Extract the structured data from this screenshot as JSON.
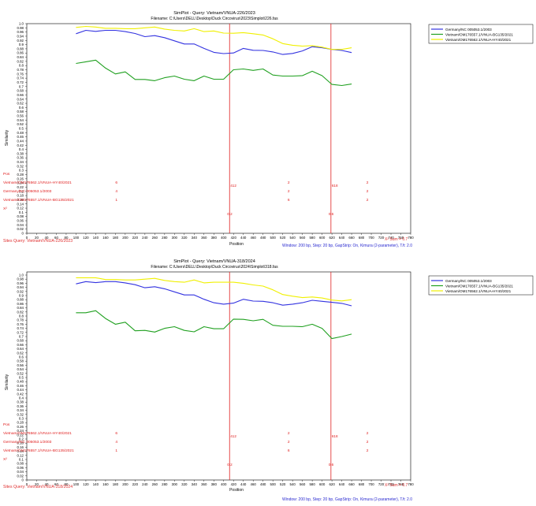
{
  "chart_data": [
    {
      "type": "line",
      "title": "SimPlot - Query: Vietnam/VNUA-226/2023",
      "subtitle": "Filename: C:\\Users\\DELL\\Desktop\\Duck Circovirus\\2023\\Simplot\\226.fas",
      "ylabel": "Similarity",
      "xlabel": "Position",
      "ylim": [
        0,
        1.0
      ],
      "xlim": [
        0,
        780
      ],
      "y_ticks": [
        "0",
        "0.02",
        "0.04",
        "0.06",
        "0.08",
        "0.1",
        "0.12",
        "0.14",
        "0.16",
        "0.18",
        "0.2",
        "0.22",
        "0.24",
        "0.26",
        "0.28",
        "0.3",
        "0.32",
        "0.34",
        "0.36",
        "0.38",
        "0.4",
        "0.42",
        "0.44",
        "0.46",
        "0.48",
        "0.5",
        "0.52",
        "0.54",
        "0.56",
        "0.58",
        "0.6",
        "0.62",
        "0.64",
        "0.66",
        "0.68",
        "0.7",
        "0.72",
        "0.74",
        "0.76",
        "0.78",
        "0.8",
        "0.82",
        "0.84",
        "0.86",
        "0.88",
        "0.9",
        "0.92",
        "0.94",
        "0.96",
        "0.98",
        "1.0"
      ],
      "x_ticks": [
        "0",
        "20",
        "40",
        "60",
        "80",
        "100",
        "120",
        "140",
        "160",
        "180",
        "200",
        "220",
        "240",
        "260",
        "280",
        "300",
        "320",
        "340",
        "360",
        "380",
        "400",
        "420",
        "440",
        "460",
        "480",
        "500",
        "520",
        "540",
        "560",
        "580",
        "600",
        "620",
        "640",
        "660",
        "680",
        "700",
        "720",
        "740",
        "760",
        "780"
      ],
      "breakpoints": [
        412,
        618
      ],
      "breakpoint_top_labels": [
        "412",
        "618"
      ],
      "breakpoint_bottom_labels": [
        "0.2",
        "0.6"
      ],
      "x": [
        100,
        120,
        140,
        160,
        180,
        200,
        220,
        240,
        260,
        280,
        300,
        320,
        340,
        360,
        380,
        400,
        420,
        440,
        460,
        480,
        500,
        520,
        540,
        560,
        580,
        600,
        620,
        640,
        660
      ],
      "series": [
        {
          "name": "Germany/NC 005053.1/2003",
          "color": "#3333e0",
          "values": [
            0.952,
            0.968,
            0.963,
            0.968,
            0.968,
            0.962,
            0.953,
            0.938,
            0.943,
            0.933,
            0.918,
            0.903,
            0.903,
            0.882,
            0.863,
            0.857,
            0.86,
            0.882,
            0.873,
            0.872,
            0.865,
            0.853,
            0.858,
            0.87,
            0.89,
            0.885,
            0.877,
            0.872,
            0.862
          ]
        },
        {
          "name": "Vietnam/OM176557.1/VNUA-BG135/2021",
          "color": "#20a020",
          "values": [
            0.81,
            0.818,
            0.826,
            0.788,
            0.76,
            0.77,
            0.734,
            0.734,
            0.728,
            0.742,
            0.75,
            0.735,
            0.728,
            0.75,
            0.735,
            0.735,
            0.78,
            0.784,
            0.777,
            0.784,
            0.755,
            0.75,
            0.75,
            0.752,
            0.773,
            0.752,
            0.71,
            0.705,
            0.712
          ]
        },
        {
          "name": "Vietnam/OM176562.1/VNUA-HY40/2021",
          "color": "#f0f000",
          "values": [
            0.982,
            0.987,
            0.984,
            0.978,
            0.978,
            0.976,
            0.976,
            0.98,
            0.984,
            0.974,
            0.968,
            0.965,
            0.976,
            0.962,
            0.965,
            0.955,
            0.954,
            0.957,
            0.952,
            0.946,
            0.928,
            0.905,
            0.897,
            0.893,
            0.895,
            0.888,
            0.877,
            0.877,
            0.885
          ]
        }
      ],
      "legend_position": "top-right",
      "info_rows": [
        {
          "label": "Pos",
          "values": []
        },
        {
          "label": "Vietnam/OM176562.1/VNUA-HY40/2021",
          "values": [
            "6",
            "2",
            "2"
          ]
        },
        {
          "label": "Germany/NC 005053.1/2003",
          "values": [
            "4",
            "2",
            "2"
          ]
        },
        {
          "label": "Vietnam/OM176557.1/VNUA-BG135/2021",
          "values": [
            "1",
            "6",
            "2"
          ]
        },
        {
          "label": "X²",
          "values": []
        }
      ],
      "sites_label": "Sites Query: Vietnam/VNUA-226/2023",
      "xsum_label": "X² Sum = 0.7",
      "window_label": "Window: 200 bp, Step: 20 bp, GapStrip: On, Kimura (2-parameter), T/t: 2.0"
    },
    {
      "type": "line",
      "title": "SimPlot - Query: Vietnam/VNUA-318/2024",
      "subtitle": "Filename: C:\\Users\\DELL\\Desktop\\Duck Circovirus\\2024\\Simplot\\318.fas",
      "ylabel": "Similarity",
      "xlabel": "Position",
      "ylim": [
        0,
        1.0
      ],
      "xlim": [
        0,
        780
      ],
      "y_ticks": [
        "0",
        "0.02",
        "0.04",
        "0.06",
        "0.08",
        "0.1",
        "0.12",
        "0.14",
        "0.16",
        "0.18",
        "0.2",
        "0.22",
        "0.24",
        "0.26",
        "0.28",
        "0.3",
        "0.32",
        "0.34",
        "0.36",
        "0.38",
        "0.4",
        "0.42",
        "0.44",
        "0.46",
        "0.48",
        "0.5",
        "0.52",
        "0.54",
        "0.56",
        "0.58",
        "0.6",
        "0.62",
        "0.64",
        "0.66",
        "0.68",
        "0.7",
        "0.72",
        "0.74",
        "0.76",
        "0.78",
        "0.8",
        "0.82",
        "0.84",
        "0.86",
        "0.88",
        "0.9",
        "0.92",
        "0.94",
        "0.96",
        "0.98",
        "1.0"
      ],
      "x_ticks": [
        "0",
        "20",
        "40",
        "60",
        "80",
        "100",
        "120",
        "140",
        "160",
        "180",
        "200",
        "220",
        "240",
        "260",
        "280",
        "300",
        "320",
        "340",
        "360",
        "380",
        "400",
        "420",
        "440",
        "460",
        "480",
        "500",
        "520",
        "540",
        "560",
        "580",
        "600",
        "620",
        "640",
        "660",
        "680",
        "700",
        "720",
        "740",
        "760",
        "780"
      ],
      "breakpoints": [
        412,
        618
      ],
      "breakpoint_top_labels": [
        "412",
        "618"
      ],
      "breakpoint_bottom_labels": [
        "0.2",
        "0.6"
      ],
      "x": [
        100,
        120,
        140,
        160,
        180,
        200,
        220,
        240,
        260,
        280,
        300,
        320,
        340,
        360,
        380,
        400,
        420,
        440,
        460,
        480,
        500,
        520,
        540,
        560,
        580,
        600,
        620,
        640,
        660
      ],
      "series": [
        {
          "name": "Germany/NC 005053.1/2003",
          "color": "#3333e0",
          "values": [
            0.957,
            0.968,
            0.963,
            0.968,
            0.968,
            0.962,
            0.953,
            0.938,
            0.943,
            0.933,
            0.918,
            0.903,
            0.903,
            0.882,
            0.865,
            0.858,
            0.863,
            0.882,
            0.873,
            0.872,
            0.865,
            0.853,
            0.858,
            0.865,
            0.877,
            0.872,
            0.867,
            0.862,
            0.85
          ]
        },
        {
          "name": "Vietnam/OM176557.1/VNUA-BG135/2021",
          "color": "#20a020",
          "values": [
            0.816,
            0.816,
            0.826,
            0.788,
            0.76,
            0.77,
            0.728,
            0.73,
            0.722,
            0.74,
            0.748,
            0.73,
            0.723,
            0.748,
            0.738,
            0.738,
            0.785,
            0.784,
            0.777,
            0.784,
            0.755,
            0.75,
            0.75,
            0.748,
            0.76,
            0.74,
            0.69,
            0.7,
            0.712
          ]
        },
        {
          "name": "Vietnam/OM176562.1/VNUA-HY40/2021",
          "color": "#f0f000",
          "values": [
            0.987,
            0.987,
            0.987,
            0.978,
            0.978,
            0.976,
            0.976,
            0.98,
            0.984,
            0.974,
            0.968,
            0.965,
            0.976,
            0.962,
            0.965,
            0.965,
            0.965,
            0.96,
            0.952,
            0.946,
            0.928,
            0.905,
            0.897,
            0.89,
            0.893,
            0.888,
            0.878,
            0.874,
            0.88
          ]
        }
      ],
      "legend_position": "top-right",
      "info_rows": [
        {
          "label": "Pos",
          "values": []
        },
        {
          "label": "Vietnam/OM176562.1/VNUA-HY40/2021",
          "values": [
            "6",
            "2",
            "2"
          ]
        },
        {
          "label": "Germany/NC 005053.1/2003",
          "values": [
            "4",
            "2",
            "2"
          ]
        },
        {
          "label": "Vietnam/OM176557.1/VNUA-BG135/2021",
          "values": [
            "1",
            "6",
            "2"
          ]
        },
        {
          "label": "X²",
          "values": []
        }
      ],
      "sites_label": "Sites Query: Vietnam/VNUA-318/2024",
      "xsum_label": "X² Sum = 0.7",
      "window_label": "Window: 200 bp, Step: 20 bp, GapStrip: On, Kimura (2-parameter), T/t: 2.0"
    }
  ]
}
